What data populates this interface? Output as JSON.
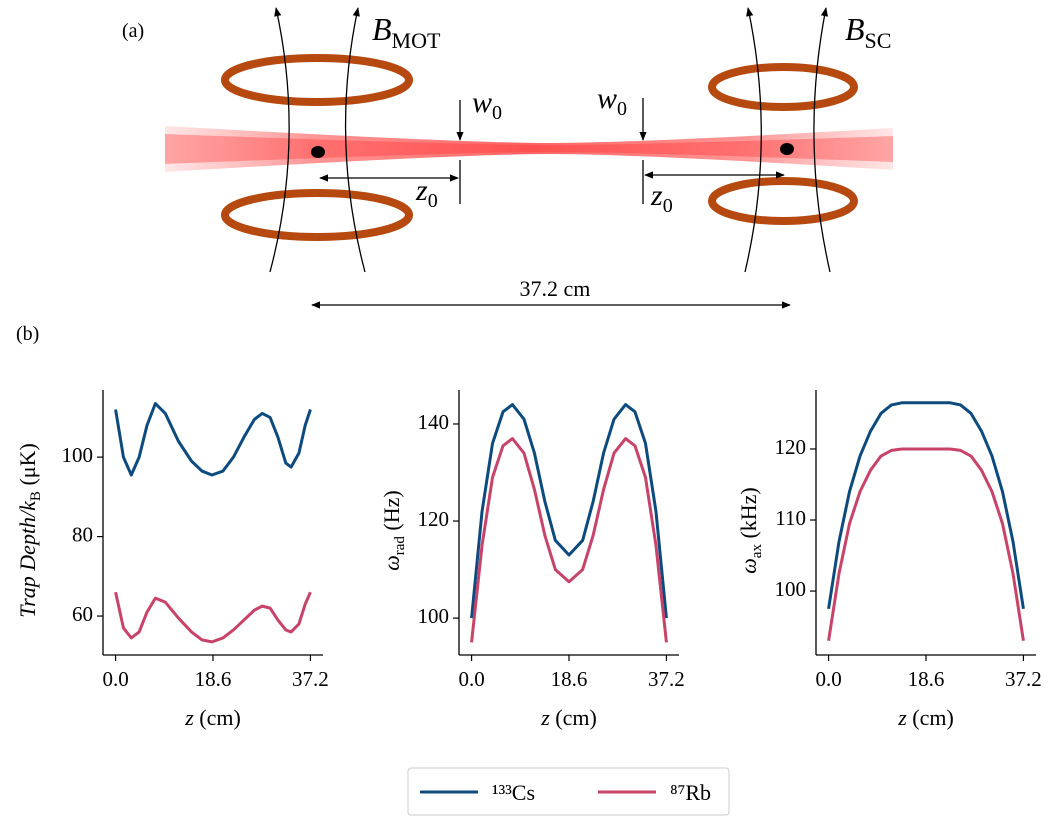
{
  "diagram": {
    "panel_a": "(a)",
    "panel_b": "(b)",
    "b_mot": {
      "symbol": "B",
      "sub": "MOT"
    },
    "b_sc": {
      "symbol": "B",
      "sub": "SC"
    },
    "waist_left": {
      "symbol": "w",
      "sub": "0"
    },
    "waist_right": {
      "symbol": "w",
      "sub": "0"
    },
    "rayleigh_left": {
      "symbol": "z",
      "sub": "0"
    },
    "rayleigh_right": {
      "symbol": "z",
      "sub": "0"
    },
    "distance": "37.2 cm"
  },
  "chart_data": [
    {
      "type": "line",
      "ylabel": {
        "text": "Trap Depth/k",
        "sub": "B",
        "tail": " (μK)"
      },
      "xlabel": {
        "symbol": "z",
        "tail": " (cm)"
      },
      "x": [
        0,
        1.5,
        3,
        4.5,
        6,
        7.6,
        9.5,
        12,
        14.5,
        16.5,
        18.4,
        20.5,
        22.5,
        24.5,
        26.5,
        28,
        29.5,
        31,
        32.5,
        33.5,
        35,
        36.2,
        37.2
      ],
      "series": [
        {
          "name": "¹³³Cs",
          "color": "#0d4a7e",
          "values": [
            112,
            100,
            95.5,
            100,
            108,
            113.5,
            111,
            104,
            99,
            96.5,
            95.5,
            96.5,
            100,
            105,
            109.5,
            111,
            110,
            105,
            98.5,
            97.5,
            101,
            108,
            112
          ]
        },
        {
          "name": "⁸⁷Rb",
          "color": "#c8436a",
          "values": [
            66,
            57,
            54.5,
            56,
            61,
            64.5,
            63.5,
            59.5,
            56,
            54,
            53.5,
            54.5,
            56.5,
            59,
            61.5,
            62.5,
            62,
            59,
            56.5,
            56,
            58,
            63,
            66
          ]
        }
      ],
      "xlim": [
        -2.4,
        39.6
      ],
      "xticks": [
        {
          "value": 0,
          "label": "0.0"
        },
        18.6,
        37.2
      ],
      "ylim": [
        50.2,
        116.9
      ],
      "yticks": [
        60,
        80,
        100
      ]
    },
    {
      "type": "line",
      "ylabel": {
        "text": "ω",
        "sub": "rad",
        "tail": " (Hz)"
      },
      "xlabel": {
        "symbol": "z",
        "tail": " (cm)"
      },
      "x": [
        0,
        2,
        4,
        6,
        7.8,
        10,
        12,
        14,
        16,
        18.6,
        21.2,
        23.2,
        25.2,
        27.2,
        29.4,
        31.2,
        33.2,
        35.2,
        37.2
      ],
      "series": [
        {
          "color": "#0d4a7e",
          "values": [
            100,
            122,
            136,
            142.5,
            144,
            141,
            134,
            124,
            116,
            113,
            116,
            124,
            134,
            141,
            144,
            142.5,
            136,
            122,
            100
          ]
        },
        {
          "color": "#c8436a",
          "values": [
            95,
            115,
            129,
            135.5,
            137,
            134,
            126.5,
            117,
            110,
            107.5,
            110,
            117,
            126.5,
            134,
            137,
            135.5,
            129,
            115,
            95
          ]
        }
      ],
      "xlim": [
        -2.4,
        39.6
      ],
      "xticks": [
        {
          "value": 0,
          "label": "0.0"
        },
        18.6,
        37.2
      ],
      "ylim": [
        92.4,
        147
      ],
      "yticks": [
        100,
        120,
        140
      ]
    },
    {
      "type": "line",
      "ylabel": {
        "text": "ω",
        "sub": "ax",
        "tail": " (kHz)"
      },
      "xlabel": {
        "symbol": "z",
        "tail": " (cm)"
      },
      "x": [
        0,
        2,
        4,
        6,
        8,
        10,
        12,
        14,
        18.6,
        23.2,
        25.2,
        27.2,
        29.2,
        31.2,
        33.2,
        35.2,
        37.2
      ],
      "series": [
        {
          "color": "#0d4a7e",
          "values": [
            97.5,
            107,
            114,
            119,
            122.5,
            125,
            126.2,
            126.5,
            126.5,
            126.5,
            126.2,
            125,
            122.5,
            119,
            114,
            107,
            97.5
          ]
        },
        {
          "color": "#c8436a",
          "values": [
            93,
            102.5,
            109.5,
            114,
            117,
            119,
            119.8,
            120,
            120,
            120,
            119.8,
            119,
            117,
            114,
            109.5,
            102.5,
            93
          ]
        }
      ],
      "xlim": [
        -2.4,
        39.6
      ],
      "xticks": [
        {
          "value": 0,
          "label": "0.0"
        },
        18.6,
        37.2
      ],
      "ylim": [
        91,
        128.3
      ],
      "yticks": [
        100,
        110,
        120
      ]
    }
  ]
}
